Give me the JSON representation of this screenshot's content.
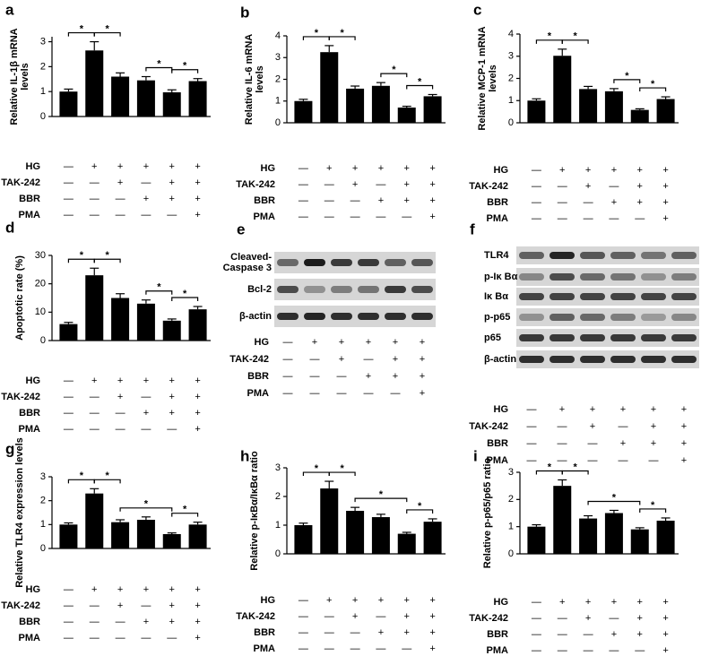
{
  "chart_data": [
    {
      "type": "bar",
      "panel": "a",
      "ylabel": [
        "Relative IL-1β mRNA",
        "levels"
      ],
      "categories": [
        null,
        null,
        null,
        null,
        null,
        null
      ],
      "values": [
        1.0,
        2.65,
        1.6,
        1.45,
        0.97,
        1.42
      ],
      "errors": [
        0.1,
        0.35,
        0.15,
        0.15,
        0.1,
        0.1
      ],
      "color": "#000000",
      "ylim": [
        0,
        3.2
      ],
      "yticks": [
        0,
        1,
        2,
        3
      ],
      "comparisons": [
        {
          "label": "*",
          "between": [
            0,
            1
          ]
        },
        {
          "label": "*",
          "between": [
            1,
            2
          ]
        },
        {
          "label": "*",
          "between": [
            3,
            4
          ]
        },
        {
          "label": "*",
          "between": [
            4,
            5
          ]
        }
      ],
      "treatments": [
        {
          "name": "HG",
          "marks": [
            "—",
            "+",
            "+",
            "+",
            "+",
            "+"
          ]
        },
        {
          "name": "TAK-242",
          "marks": [
            "—",
            "—",
            "+",
            "—",
            "+",
            "+"
          ]
        },
        {
          "name": "BBR",
          "marks": [
            "—",
            "—",
            "—",
            "+",
            "+",
            "+"
          ]
        },
        {
          "name": "PMA",
          "marks": [
            "—",
            "—",
            "—",
            "—",
            "—",
            "+"
          ]
        }
      ]
    },
    {
      "type": "bar",
      "panel": "b",
      "ylabel": [
        "Relative IL-6 mRNA",
        "levels"
      ],
      "categories": [
        null,
        null,
        null,
        null,
        null,
        null
      ],
      "values": [
        1.0,
        3.25,
        1.57,
        1.7,
        0.7,
        1.22
      ],
      "errors": [
        0.08,
        0.3,
        0.12,
        0.15,
        0.06,
        0.08
      ],
      "color": "#000000",
      "ylim": [
        0,
        4
      ],
      "yticks": [
        0,
        1,
        2,
        3,
        4
      ],
      "comparisons": [
        {
          "label": "*",
          "between": [
            0,
            1
          ]
        },
        {
          "label": "*",
          "between": [
            1,
            2
          ]
        },
        {
          "label": "*",
          "between": [
            3,
            4
          ]
        },
        {
          "label": "*",
          "between": [
            4,
            5
          ]
        }
      ],
      "treatments": [
        {
          "name": "HG",
          "marks": [
            "—",
            "+",
            "+",
            "+",
            "+",
            "+"
          ]
        },
        {
          "name": "TAK-242",
          "marks": [
            "—",
            "—",
            "+",
            "—",
            "+",
            "+"
          ]
        },
        {
          "name": "BBR",
          "marks": [
            "—",
            "—",
            "—",
            "+",
            "+",
            "+"
          ]
        },
        {
          "name": "PMA",
          "marks": [
            "—",
            "—",
            "—",
            "—",
            "—",
            "+"
          ]
        }
      ]
    },
    {
      "type": "bar",
      "panel": "c",
      "ylabel": [
        "Relative MCP-1 mRNA",
        "levels"
      ],
      "categories": [
        null,
        null,
        null,
        null,
        null,
        null
      ],
      "values": [
        1.0,
        3.02,
        1.52,
        1.42,
        0.58,
        1.07
      ],
      "errors": [
        0.08,
        0.3,
        0.12,
        0.12,
        0.05,
        0.1
      ],
      "color": "#000000",
      "ylim": [
        0,
        4
      ],
      "yticks": [
        0,
        1,
        2,
        3,
        4
      ],
      "comparisons": [
        {
          "label": "*",
          "between": [
            0,
            1
          ]
        },
        {
          "label": "*",
          "between": [
            1,
            2
          ]
        },
        {
          "label": "*",
          "between": [
            3,
            4
          ]
        },
        {
          "label": "*",
          "between": [
            4,
            5
          ]
        }
      ],
      "treatments": [
        {
          "name": "HG",
          "marks": [
            "—",
            "+",
            "+",
            "+",
            "+",
            "+"
          ]
        },
        {
          "name": "TAK-242",
          "marks": [
            "—",
            "—",
            "+",
            "—",
            "+",
            "+"
          ]
        },
        {
          "name": "BBR",
          "marks": [
            "—",
            "—",
            "—",
            "+",
            "+",
            "+"
          ]
        },
        {
          "name": "PMA",
          "marks": [
            "—",
            "—",
            "—",
            "—",
            "—",
            "+"
          ]
        }
      ]
    },
    {
      "type": "bar",
      "panel": "d",
      "ylabel": [
        "Apoptotic rate (%)"
      ],
      "categories": [
        null,
        null,
        null,
        null,
        null,
        null
      ],
      "values": [
        5.8,
        23,
        15,
        13,
        7,
        11
      ],
      "errors": [
        0.6,
        2.5,
        1.5,
        1.3,
        0.6,
        1
      ],
      "color": "#000000",
      "ylim": [
        0,
        30
      ],
      "yticks": [
        0,
        10,
        20,
        30
      ],
      "comparisons": [
        {
          "label": "*",
          "between": [
            0,
            1
          ]
        },
        {
          "label": "*",
          "between": [
            1,
            2
          ]
        },
        {
          "label": "*",
          "between": [
            3,
            4
          ]
        },
        {
          "label": "*",
          "between": [
            4,
            5
          ]
        }
      ],
      "treatments": [
        {
          "name": "HG",
          "marks": [
            "—",
            "+",
            "+",
            "+",
            "+",
            "+"
          ]
        },
        {
          "name": "TAK-242",
          "marks": [
            "—",
            "—",
            "+",
            "—",
            "+",
            "+"
          ]
        },
        {
          "name": "BBR",
          "marks": [
            "—",
            "—",
            "—",
            "+",
            "+",
            "+"
          ]
        },
        {
          "name": "PMA",
          "marks": [
            "—",
            "—",
            "—",
            "—",
            "—",
            "+"
          ]
        }
      ]
    },
    {
      "type": "bar",
      "panel": "g",
      "ylabel": [
        "Relative TLR4 expression levels"
      ],
      "categories": [
        null,
        null,
        null,
        null,
        null,
        null
      ],
      "values": [
        1.0,
        2.3,
        1.1,
        1.2,
        0.6,
        1.0
      ],
      "errors": [
        0.07,
        0.2,
        0.1,
        0.12,
        0.05,
        0.1
      ],
      "color": "#000000",
      "ylim": [
        0,
        3
      ],
      "yticks": [
        0,
        1,
        2,
        3
      ],
      "comparisons": [
        {
          "label": "*",
          "between": [
            0,
            1
          ]
        },
        {
          "label": "*",
          "between": [
            1,
            2
          ]
        },
        {
          "label": "*",
          "between": [
            2,
            4
          ]
        },
        {
          "label": "*",
          "between": [
            4,
            5
          ]
        }
      ],
      "treatments": [
        {
          "name": "HG",
          "marks": [
            "—",
            "+",
            "+",
            "+",
            "+",
            "+"
          ]
        },
        {
          "name": "TAK-242",
          "marks": [
            "—",
            "—",
            "+",
            "—",
            "+",
            "+"
          ]
        },
        {
          "name": "BBR",
          "marks": [
            "—",
            "—",
            "—",
            "+",
            "+",
            "+"
          ]
        },
        {
          "name": "PMA",
          "marks": [
            "—",
            "—",
            "—",
            "—",
            "—",
            "+"
          ]
        }
      ]
    },
    {
      "type": "bar",
      "panel": "h",
      "ylabel": [
        "Relative p-IκBα/IκBα ratio"
      ],
      "categories": [
        null,
        null,
        null,
        null,
        null,
        null
      ],
      "values": [
        1.0,
        2.28,
        1.5,
        1.28,
        0.7,
        1.12
      ],
      "errors": [
        0.07,
        0.25,
        0.12,
        0.1,
        0.05,
        0.1
      ],
      "color": "#000000",
      "ylim": [
        0,
        3
      ],
      "yticks": [
        0,
        1,
        2,
        3
      ],
      "comparisons": [
        {
          "label": "*",
          "between": [
            0,
            1
          ]
        },
        {
          "label": "*",
          "between": [
            1,
            2
          ]
        },
        {
          "label": "*",
          "between": [
            2,
            4
          ]
        },
        {
          "label": "*",
          "between": [
            4,
            5
          ]
        }
      ],
      "treatments": [
        {
          "name": "HG",
          "marks": [
            "—",
            "+",
            "+",
            "+",
            "+",
            "+"
          ]
        },
        {
          "name": "TAK-242",
          "marks": [
            "—",
            "—",
            "+",
            "—",
            "+",
            "+"
          ]
        },
        {
          "name": "BBR",
          "marks": [
            "—",
            "—",
            "—",
            "+",
            "+",
            "+"
          ]
        },
        {
          "name": "PMA",
          "marks": [
            "—",
            "—",
            "—",
            "—",
            "—",
            "+"
          ]
        }
      ]
    },
    {
      "type": "bar",
      "panel": "i",
      "ylabel": [
        "Relative p-p65/p65 ratio"
      ],
      "categories": [
        null,
        null,
        null,
        null,
        null,
        null
      ],
      "values": [
        1.0,
        2.5,
        1.3,
        1.5,
        0.9,
        1.22
      ],
      "errors": [
        0.07,
        0.22,
        0.1,
        0.1,
        0.06,
        0.1
      ],
      "color": "#000000",
      "ylim": [
        0,
        3
      ],
      "yticks": [
        0,
        1,
        2,
        3
      ],
      "comparisons": [
        {
          "label": "*",
          "between": [
            0,
            1
          ]
        },
        {
          "label": "*",
          "between": [
            1,
            2
          ]
        },
        {
          "label": "*",
          "between": [
            2,
            4
          ]
        },
        {
          "label": "*",
          "between": [
            4,
            5
          ]
        }
      ],
      "treatments": [
        {
          "name": "HG",
          "marks": [
            "—",
            "+",
            "+",
            "+",
            "+",
            "+"
          ]
        },
        {
          "name": "TAK-242",
          "marks": [
            "—",
            "—",
            "+",
            "—",
            "+",
            "+"
          ]
        },
        {
          "name": "BBR",
          "marks": [
            "—",
            "—",
            "—",
            "+",
            "+",
            "+"
          ]
        },
        {
          "name": "PMA",
          "marks": [
            "—",
            "—",
            "—",
            "—",
            "—",
            "+"
          ]
        }
      ]
    }
  ],
  "blots": [
    {
      "panel": "e",
      "rows": [
        [
          "Cleaved-",
          "Caspase 3"
        ],
        "Bcl-2",
        "β-actin"
      ],
      "treatments": [
        {
          "name": "HG",
          "marks": [
            "—",
            "+",
            "+",
            "+",
            "+",
            "+"
          ]
        },
        {
          "name": "TAK-242",
          "marks": [
            "—",
            "—",
            "+",
            "—",
            "+",
            "+"
          ]
        },
        {
          "name": "BBR",
          "marks": [
            "—",
            "—",
            "—",
            "+",
            "+",
            "+"
          ]
        },
        {
          "name": "PMA",
          "marks": [
            "—",
            "—",
            "—",
            "—",
            "—",
            "+"
          ]
        }
      ]
    },
    {
      "panel": "f",
      "rows": [
        "TLR4",
        "p-Iκ Bα",
        "Iκ Bα",
        "p-p65",
        "p65",
        "β-actin"
      ],
      "treatments": [
        {
          "name": "HG",
          "marks": [
            "—",
            "+",
            "+",
            "+",
            "+",
            "+"
          ]
        },
        {
          "name": "TAK-242",
          "marks": [
            "—",
            "—",
            "+",
            "—",
            "+",
            "+"
          ]
        },
        {
          "name": "BBR",
          "marks": [
            "—",
            "—",
            "—",
            "+",
            "+",
            "+"
          ]
        },
        {
          "name": "PMA",
          "marks": [
            "—",
            "—",
            "—",
            "—",
            "—",
            "+"
          ]
        }
      ]
    }
  ]
}
